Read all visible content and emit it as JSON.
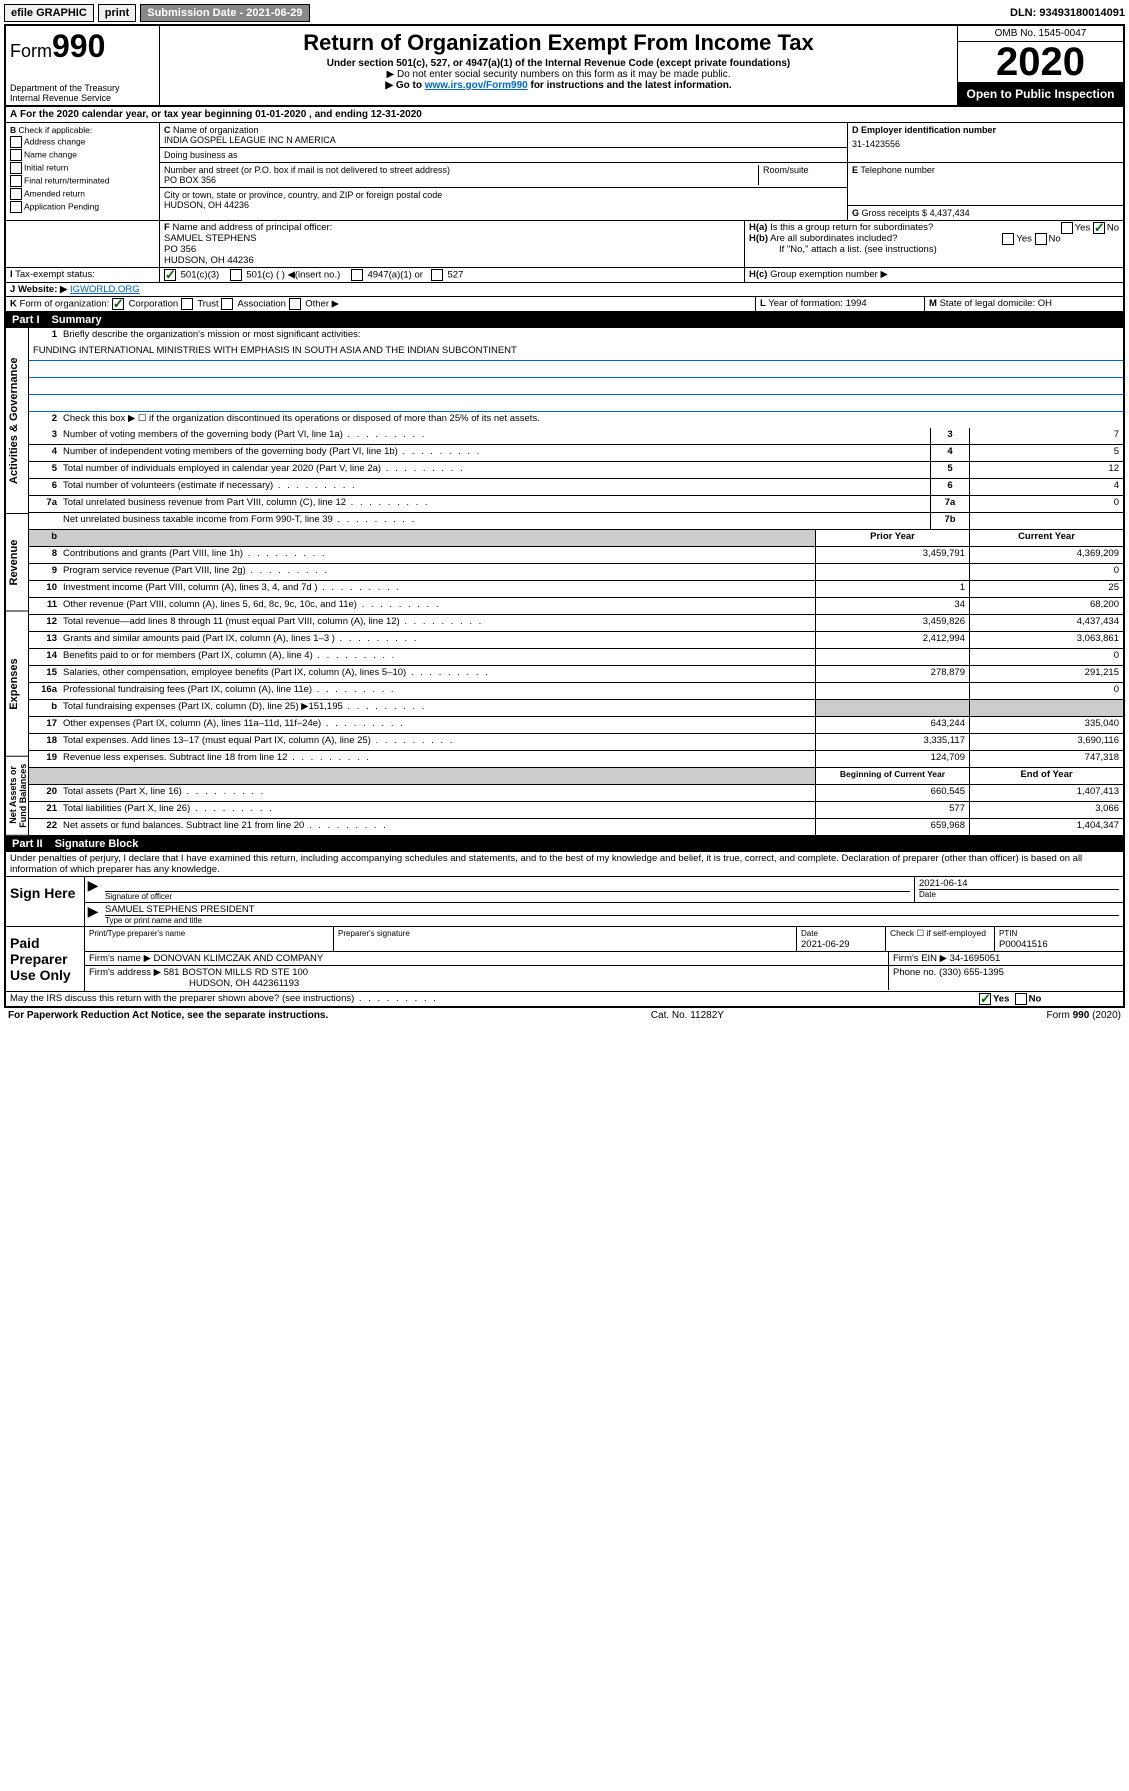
{
  "topbar": {
    "efile": "efile GRAPHIC",
    "print": "print",
    "submission_label": "Submission Date - 2021-06-29",
    "dln": "DLN: 93493180014091"
  },
  "header": {
    "form_prefix": "Form",
    "form_num": "990",
    "dept": "Department of the Treasury",
    "irs": "Internal Revenue Service",
    "title": "Return of Organization Exempt From Income Tax",
    "sub1": "Under section 501(c), 527, or 4947(a)(1) of the Internal Revenue Code (except private foundations)",
    "sub2": "▶ Do not enter social security numbers on this form as it may be made public.",
    "sub3_pre": "▶ Go to ",
    "sub3_link": "www.irs.gov/Form990",
    "sub3_post": " for instructions and the latest information.",
    "omb": "OMB No. 1545-0047",
    "year": "2020",
    "open": "Open to Public Inspection"
  },
  "A": {
    "text": "For the 2020 calendar year, or tax year beginning 01-01-2020    , and ending 12-31-2020"
  },
  "B": {
    "label": "Check if applicable:",
    "opts": [
      "Address change",
      "Name change",
      "Initial return",
      "Final return/terminated",
      "Amended return",
      "Application Pending"
    ]
  },
  "C": {
    "name_label": "Name of organization",
    "name": "INDIA GOSPEL LEAGUE INC N AMERICA",
    "dba_label": "Doing business as",
    "addr_label": "Number and street (or P.O. box if mail is not delivered to street address)",
    "room_label": "Room/suite",
    "addr": "PO BOX 356",
    "city_label": "City or town, state or province, country, and ZIP or foreign postal code",
    "city": "HUDSON, OH  44236"
  },
  "D": {
    "label": "Employer identification number",
    "val": "31-1423556"
  },
  "E": {
    "label": "Telephone number",
    "val": ""
  },
  "G": {
    "label": "Gross receipts $",
    "val": "4,437,434"
  },
  "F": {
    "label": "Name and address of principal officer:",
    "name": "SAMUEL STEPHENS",
    "addr1": "PO 356",
    "addr2": "HUDSON, OH  44236"
  },
  "H": {
    "a": "Is this a group return for subordinates?",
    "b": "Are all subordinates included?",
    "b_note": "If \"No,\" attach a list. (see instructions)",
    "c": "Group exemption number ▶",
    "yes": "Yes",
    "no": "No"
  },
  "I": {
    "label": "Tax-exempt status:",
    "o1": "501(c)(3)",
    "o2": "501(c) (  ) ◀(insert no.)",
    "o3": "4947(a)(1) or",
    "o4": "527"
  },
  "J": {
    "label": "Website: ▶",
    "val": "IGWORLD.ORG"
  },
  "K": {
    "label": "Form of organization:",
    "o1": "Corporation",
    "o2": "Trust",
    "o3": "Association",
    "o4": "Other ▶"
  },
  "L": {
    "label": "Year of formation:",
    "val": "1994"
  },
  "M": {
    "label": "State of legal domicile:",
    "val": "OH"
  },
  "part1": {
    "title": "Part I",
    "name": "Summary",
    "tab_gov": "Activities & Governance",
    "tab_rev": "Revenue",
    "tab_exp": "Expenses",
    "tab_net": "Net Assets or Fund Balances",
    "q1": "Briefly describe the organization's mission or most significant activities:",
    "mission": "FUNDING INTERNATIONAL MINISTRIES WITH EMPHASIS IN SOUTH ASIA AND THE INDIAN SUBCONTINENT",
    "q2": "Check this box ▶ ☐ if the organization discontinued its operations or disposed of more than 25% of its net assets.",
    "rows_gov": [
      {
        "n": "3",
        "d": "Number of voting members of the governing body (Part VI, line 1a)",
        "box": "3",
        "v": "7"
      },
      {
        "n": "4",
        "d": "Number of independent voting members of the governing body (Part VI, line 1b)",
        "box": "4",
        "v": "5"
      },
      {
        "n": "5",
        "d": "Total number of individuals employed in calendar year 2020 (Part V, line 2a)",
        "box": "5",
        "v": "12"
      },
      {
        "n": "6",
        "d": "Total number of volunteers (estimate if necessary)",
        "box": "6",
        "v": "4"
      },
      {
        "n": "7a",
        "d": "Total unrelated business revenue from Part VIII, column (C), line 12",
        "box": "7a",
        "v": "0"
      },
      {
        "n": "",
        "d": "Net unrelated business taxable income from Form 990-T, line 39",
        "box": "7b",
        "v": ""
      }
    ],
    "col_prior": "Prior Year",
    "col_current": "Current Year",
    "rows_rev": [
      {
        "n": "8",
        "d": "Contributions and grants (Part VIII, line 1h)",
        "p": "3,459,791",
        "c": "4,369,209"
      },
      {
        "n": "9",
        "d": "Program service revenue (Part VIII, line 2g)",
        "p": "",
        "c": "0"
      },
      {
        "n": "10",
        "d": "Investment income (Part VIII, column (A), lines 3, 4, and 7d )",
        "p": "1",
        "c": "25"
      },
      {
        "n": "11",
        "d": "Other revenue (Part VIII, column (A), lines 5, 6d, 8c, 9c, 10c, and 11e)",
        "p": "34",
        "c": "68,200"
      },
      {
        "n": "12",
        "d": "Total revenue—add lines 8 through 11 (must equal Part VIII, column (A), line 12)",
        "p": "3,459,826",
        "c": "4,437,434"
      }
    ],
    "rows_exp": [
      {
        "n": "13",
        "d": "Grants and similar amounts paid (Part IX, column (A), lines 1–3 )",
        "p": "2,412,994",
        "c": "3,063,861"
      },
      {
        "n": "14",
        "d": "Benefits paid to or for members (Part IX, column (A), line 4)",
        "p": "",
        "c": "0"
      },
      {
        "n": "15",
        "d": "Salaries, other compensation, employee benefits (Part IX, column (A), lines 5–10)",
        "p": "278,879",
        "c": "291,215"
      },
      {
        "n": "16a",
        "d": "Professional fundraising fees (Part IX, column (A), line 11e)",
        "p": "",
        "c": "0"
      },
      {
        "n": "b",
        "d": "Total fundraising expenses (Part IX, column (D), line 25) ▶151,195",
        "p": "shade",
        "c": "shade"
      },
      {
        "n": "17",
        "d": "Other expenses (Part IX, column (A), lines 11a–11d, 11f–24e)",
        "p": "643,244",
        "c": "335,040"
      },
      {
        "n": "18",
        "d": "Total expenses. Add lines 13–17 (must equal Part IX, column (A), line 25)",
        "p": "3,335,117",
        "c": "3,690,116"
      },
      {
        "n": "19",
        "d": "Revenue less expenses. Subtract line 18 from line 12",
        "p": "124,709",
        "c": "747,318"
      }
    ],
    "col_begin": "Beginning of Current Year",
    "col_end": "End of Year",
    "rows_net": [
      {
        "n": "20",
        "d": "Total assets (Part X, line 16)",
        "p": "660,545",
        "c": "1,407,413"
      },
      {
        "n": "21",
        "d": "Total liabilities (Part X, line 26)",
        "p": "577",
        "c": "3,066"
      },
      {
        "n": "22",
        "d": "Net assets or fund balances. Subtract line 21 from line 20",
        "p": "659,968",
        "c": "1,404,347"
      }
    ]
  },
  "part2": {
    "title": "Part II",
    "name": "Signature Block",
    "decl": "Under penalties of perjury, I declare that I have examined this return, including accompanying schedules and statements, and to the best of my knowledge and belief, it is true, correct, and complete. Declaration of preparer (other than officer) is based on all information of which preparer has any knowledge.",
    "sign_here": "Sign Here",
    "sig_officer": "Signature of officer",
    "sig_date": "2021-06-14",
    "date_label": "Date",
    "officer_name": "SAMUEL STEPHENS  PRESIDENT",
    "type_label": "Type or print name and title",
    "paid": "Paid Preparer Use Only",
    "prep_name_label": "Print/Type preparer's name",
    "prep_sig_label": "Preparer's signature",
    "prep_date_label": "Date",
    "prep_date": "2021-06-29",
    "check_label": "Check ☐ if self-employed",
    "ptin_label": "PTIN",
    "ptin": "P00041516",
    "firm_name_label": "Firm's name    ▶",
    "firm_name": "DONOVAN KLIMCZAK AND COMPANY",
    "firm_ein_label": "Firm's EIN ▶",
    "firm_ein": "34-1695051",
    "firm_addr_label": "Firm's address ▶",
    "firm_addr1": "581 BOSTON MILLS RD STE 100",
    "firm_addr2": "HUDSON, OH  442361193",
    "phone_label": "Phone no.",
    "phone": "(330) 655-1395",
    "discuss": "May the IRS discuss this return with the preparer shown above? (see instructions)",
    "yes": "Yes",
    "no": "No"
  },
  "footer": {
    "left": "For Paperwork Reduction Act Notice, see the separate instructions.",
    "mid": "Cat. No. 11282Y",
    "right": "Form 990 (2020)"
  }
}
